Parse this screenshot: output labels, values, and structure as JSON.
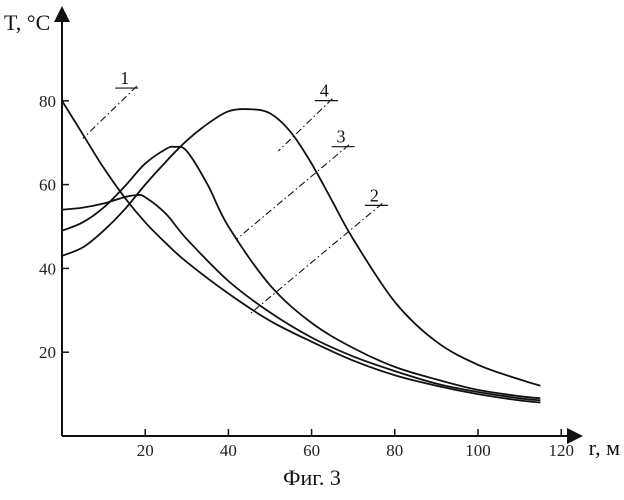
{
  "chart_data": {
    "type": "line",
    "xlabel": "r, м",
    "ylabel": "T, °C",
    "xlim": [
      0,
      125
    ],
    "ylim": [
      0,
      100
    ],
    "x_ticks": [
      20,
      40,
      60,
      80,
      100,
      120
    ],
    "y_ticks": [
      20,
      40,
      60,
      80
    ],
    "grid": false,
    "series": [
      {
        "name": "1",
        "x": [
          0,
          5,
          10,
          15,
          20,
          25,
          30,
          40,
          50,
          60,
          70,
          80,
          90,
          100,
          110,
          115
        ],
        "values": [
          80,
          72,
          64,
          57,
          51,
          46,
          41.5,
          34,
          27.5,
          22.5,
          18,
          14.5,
          12,
          10,
          8.5,
          8
        ]
      },
      {
        "name": "2",
        "x": [
          0,
          5,
          10,
          15,
          18,
          20,
          25,
          30,
          40,
          50,
          60,
          70,
          80,
          90,
          100,
          110,
          115
        ],
        "values": [
          54,
          54.5,
          55.5,
          57,
          57.5,
          57,
          53,
          47,
          37,
          29.5,
          23.5,
          19,
          15.5,
          12.5,
          10.5,
          9,
          8.5
        ]
      },
      {
        "name": "3",
        "x": [
          0,
          5,
          10,
          15,
          20,
          25,
          27,
          30,
          35,
          40,
          50,
          60,
          70,
          80,
          90,
          100,
          110,
          115
        ],
        "values": [
          49,
          51,
          54.5,
          59.5,
          65,
          68.5,
          69,
          68,
          60,
          50,
          36,
          27,
          21,
          16.5,
          13.5,
          11,
          9.5,
          9
        ]
      },
      {
        "name": "4",
        "x": [
          0,
          5,
          10,
          15,
          20,
          25,
          30,
          35,
          40,
          45,
          50,
          55,
          60,
          65,
          70,
          80,
          90,
          100,
          110,
          115
        ],
        "values": [
          43,
          45,
          49,
          54,
          60,
          65.5,
          70.5,
          74.5,
          77.5,
          78,
          77,
          72.5,
          65,
          56,
          47,
          32,
          22.5,
          17,
          13.5,
          12
        ]
      }
    ],
    "curve_labels": [
      "1",
      "2",
      "3",
      "4"
    ]
  },
  "caption": "Фиг. 3"
}
